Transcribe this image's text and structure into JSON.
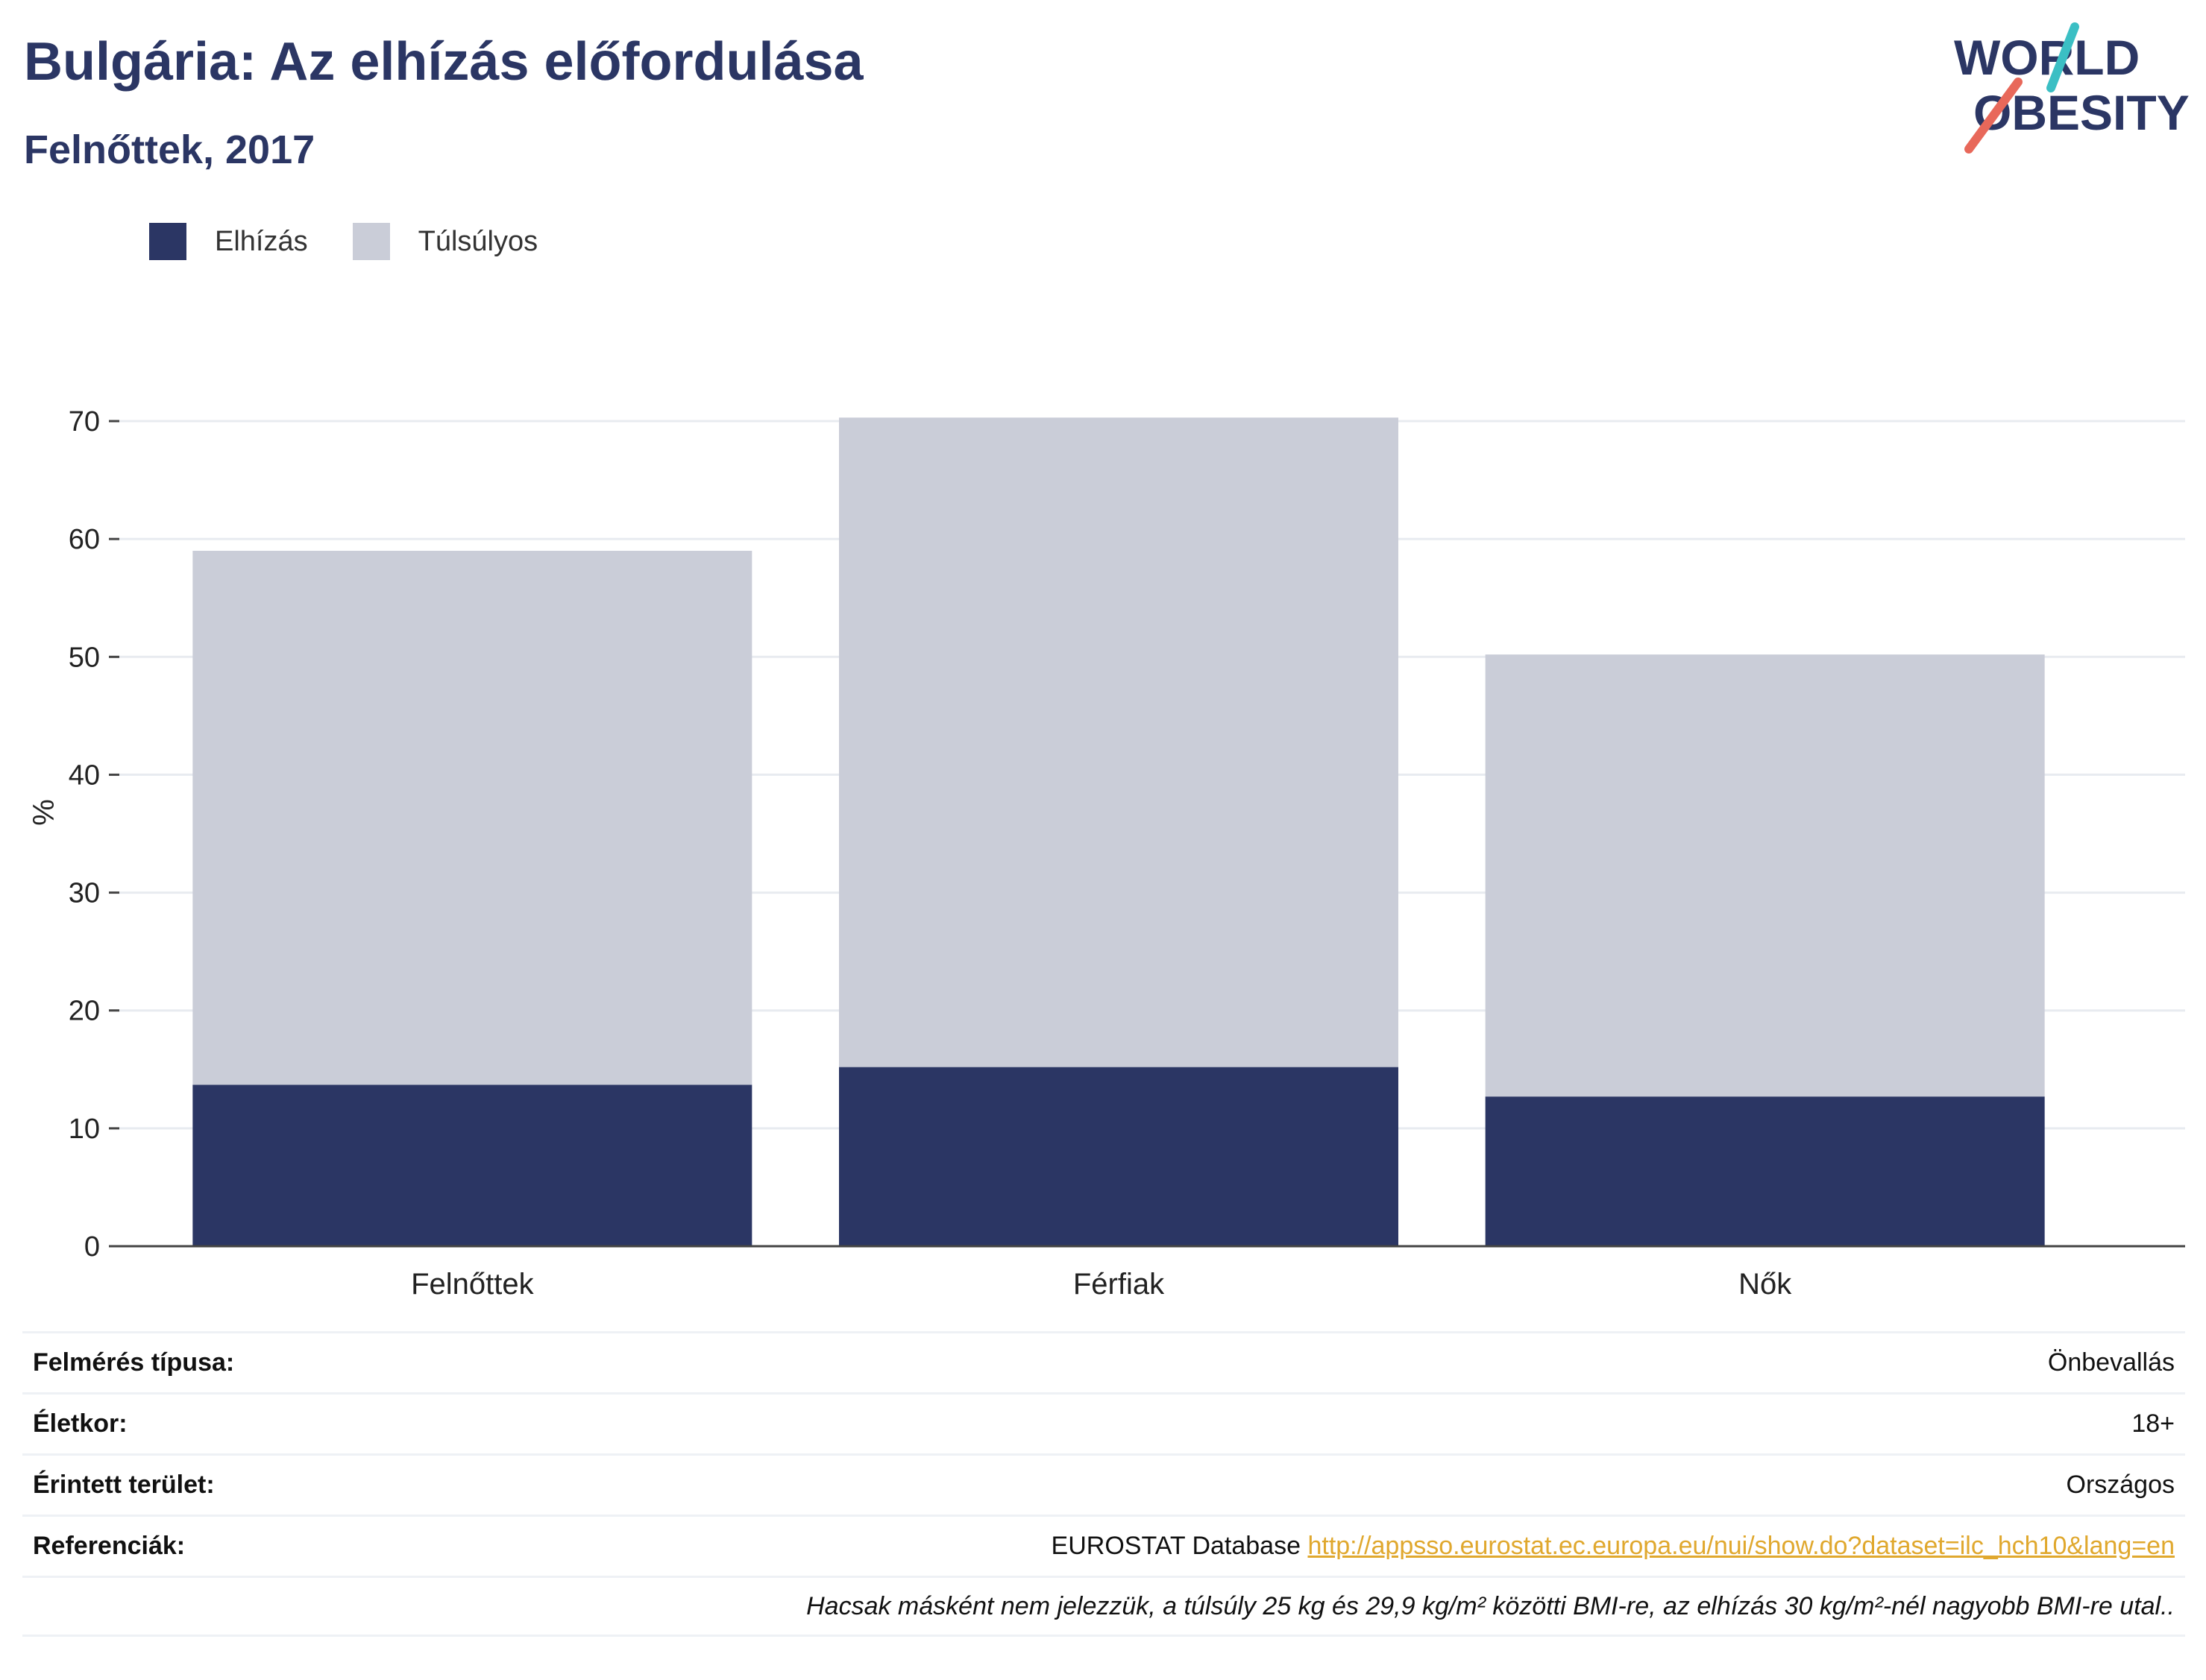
{
  "header": {
    "title": "Bulgária: Az elhízás előfordulása",
    "subtitle": "Felnőttek, 2017"
  },
  "logo": {
    "line1": "WORLD",
    "line2": "OBESITY",
    "icon": "world-obesity-logo"
  },
  "legend": [
    {
      "label": "Elhízás",
      "color": "#2b3664"
    },
    {
      "label": "Túlsúlyos",
      "color": "#cacdd8"
    }
  ],
  "chart_data": {
    "type": "bar",
    "stacked": true,
    "categories": [
      "Felnőttek",
      "Férfiak",
      "Nők"
    ],
    "series": [
      {
        "name": "Elhízás",
        "values": [
          13.7,
          15.2,
          12.7
        ],
        "color": "#2b3664"
      },
      {
        "name": "Túlsúlyos",
        "values": [
          45.3,
          55.1,
          37.5
        ],
        "color": "#cacdd8"
      }
    ],
    "ylabel": "%",
    "ylim": [
      0,
      70
    ],
    "yticks": [
      0,
      10,
      20,
      30,
      40,
      50,
      60,
      70
    ],
    "grid": true,
    "legend_position": "top-left"
  },
  "info": {
    "survey_type_label": "Felmérés típusa:",
    "survey_type_value": "Önbevallás",
    "age_label": "Életkor:",
    "age_value": "18+",
    "area_label": "Érintett terület:",
    "area_value": "Országos",
    "references_label": "Referenciák:",
    "references_source": "EUROSTAT Database",
    "references_url": "http://appsso.eurostat.ec.europa.eu/nui/show.do?dataset=ilc_hch10&lang=en",
    "note": "Hacsak másként nem jelezzük, a túlsúly 25 kg és 29,9 kg/m² közötti BMI-re, az elhízás 30 kg/m²-nél nagyobb BMI-re utal.."
  }
}
